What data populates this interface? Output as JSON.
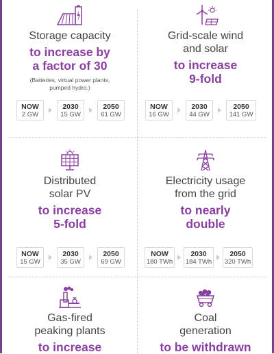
{
  "cards": [
    {
      "icon": "battery-storage-icon",
      "title": "Storage capacity",
      "highlight_lines": [
        "to increase by",
        "a factor of 30"
      ],
      "note_lines": [
        "(Batteries, virtual power plants,",
        "pumped hydro.)"
      ],
      "timeline": [
        {
          "year": "NOW",
          "value": "2 GW"
        },
        {
          "year": "2030",
          "value": "15 GW"
        },
        {
          "year": "2050",
          "value": "61 GW"
        }
      ]
    },
    {
      "icon": "wind-solar-icon",
      "title_lines": [
        "Grid-scale wind",
        "and solar"
      ],
      "highlight_lines": [
        "to increase",
        "9-fold"
      ],
      "timeline": [
        {
          "year": "NOW",
          "value": "16 GW"
        },
        {
          "year": "2030",
          "value": "44 GW"
        },
        {
          "year": "2050",
          "value": "141 GW"
        }
      ]
    },
    {
      "icon": "solar-panel-icon",
      "title_lines": [
        "Distributed",
        "solar PV"
      ],
      "highlight_lines": [
        "to increase",
        "5-fold"
      ],
      "timeline": [
        {
          "year": "NOW",
          "value": "15 GW"
        },
        {
          "year": "2030",
          "value": "35 GW"
        },
        {
          "year": "2050",
          "value": "69 GW"
        }
      ]
    },
    {
      "icon": "transmission-tower-icon",
      "title_lines": [
        "Electricity usage",
        "from the grid"
      ],
      "highlight_lines": [
        "to nearly",
        "double"
      ],
      "timeline": [
        {
          "year": "NOW",
          "value": "180 TWh"
        },
        {
          "year": "2030",
          "value": "184 TWh"
        },
        {
          "year": "2050",
          "value": "320 TWh"
        }
      ]
    },
    {
      "icon": "gas-plant-icon",
      "title_lines": [
        "Gas-fired",
        "peaking plants"
      ],
      "highlight_lines": [
        "to increase"
      ]
    },
    {
      "icon": "coal-cart-icon",
      "title_lines": [
        "Coal",
        "generation"
      ],
      "highlight_lines": [
        "to be withdrawn"
      ]
    }
  ],
  "colors": {
    "accent": "#8a3fa0",
    "frame": "#7b3f8f",
    "text": "#444444"
  }
}
